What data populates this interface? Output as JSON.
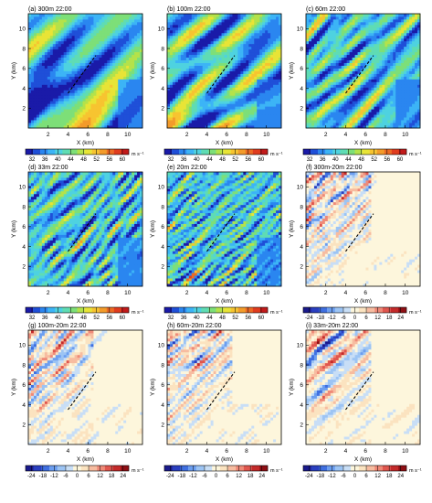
{
  "chart_data": {
    "type": "heatmap",
    "x_axis": {
      "label": "X (km)",
      "ticks": [
        "2",
        "4",
        "6",
        "8",
        "10"
      ],
      "range": [
        0,
        11.5
      ]
    },
    "y_axis": {
      "label": "Y (km)",
      "ticks": [
        "2",
        "4",
        "6",
        "8",
        "10"
      ],
      "range": [
        0,
        11.5
      ]
    },
    "colorbars": {
      "wind": {
        "unit": "m s⁻¹",
        "ticks": [
          "32",
          "36",
          "40",
          "44",
          "48",
          "52",
          "56",
          "60"
        ],
        "range": [
          30,
          62
        ],
        "colors": [
          "#1a1aa8",
          "#1f4fd8",
          "#2a86f0",
          "#3cb4f6",
          "#4ed2e0",
          "#5fdcb4",
          "#7ddf78",
          "#b4e24a",
          "#e8e436",
          "#f7c430",
          "#f39b2a",
          "#ec6a24",
          "#e03c1e",
          "#c21a1a"
        ]
      },
      "diff": {
        "unit": "m s⁻¹",
        "ticks": [
          "-24",
          "-18",
          "-12",
          "-6",
          "0",
          "6",
          "12",
          "18",
          "24"
        ],
        "range": [
          -27,
          27
        ],
        "colors": [
          "#1a1a8c",
          "#2a3fc0",
          "#3f6fe0",
          "#6c9ef0",
          "#9cc4f4",
          "#c8def6",
          "#fdf6dc",
          "#fbe3c0",
          "#f7bca0",
          "#ef8a78",
          "#e0564e",
          "#c42a2a",
          "#8e0f14"
        ]
      }
    },
    "transect": {
      "from": [
        4,
        3.5
      ],
      "to": [
        6.8,
        7.3
      ]
    },
    "panels": [
      {
        "title": "(a) 300m 22:00",
        "field": "wind speed",
        "colorbar": "wind",
        "smooth": 1.6
      },
      {
        "title": "(b) 100m 22:00",
        "field": "wind speed",
        "colorbar": "wind",
        "smooth": 0.9
      },
      {
        "title": "(c) 60m 22:00",
        "field": "wind speed",
        "colorbar": "wind",
        "smooth": 0.6
      },
      {
        "title": "(d) 33m 22:00",
        "field": "wind speed",
        "colorbar": "wind",
        "smooth": 0.4
      },
      {
        "title": "(e) 20m 22:00",
        "field": "wind speed",
        "colorbar": "wind",
        "smooth": 0.3
      },
      {
        "title": "(f) 300m-20m 22:00",
        "field": "difference",
        "colorbar": "diff",
        "smooth": 0.3
      },
      {
        "title": "(g) 100m-20m 22:00",
        "field": "difference",
        "colorbar": "diff",
        "smooth": 0.35
      },
      {
        "title": "(h) 60m-20m 22:00",
        "field": "difference",
        "colorbar": "diff",
        "smooth": 0.35
      },
      {
        "title": "(i) 33m-20m 22:00",
        "field": "difference",
        "colorbar": "diff",
        "smooth": 0.4
      }
    ]
  }
}
